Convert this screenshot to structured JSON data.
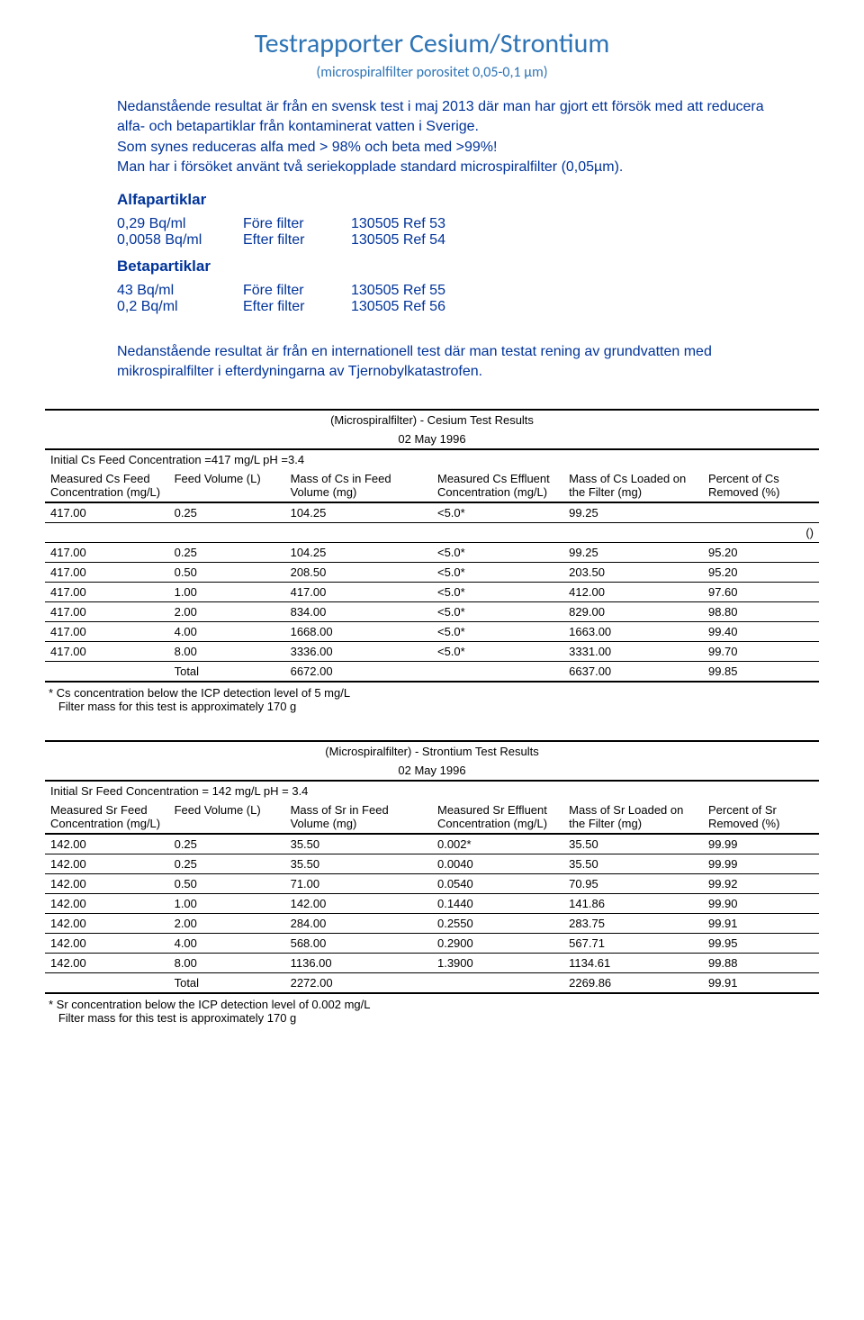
{
  "title": "Testrapporter Cesium/Strontium",
  "subtitle": "(microspiralfilter porositet 0,05-0,1 µm)",
  "intro": "Nedanstående resultat är från en svensk test i maj 2013 där man har gjort ett försök med att reducera alfa- och betapartiklar från kontaminerat vatten i Sverige.\nSom synes reduceras alfa med > 98% och beta med >99%!\nMan har i försöket använt två seriekopplade standard microspiralfilter (0,05µm).",
  "alpha": {
    "heading": "Alfapartiklar",
    "rows": [
      {
        "c1": "0,29 Bq/ml",
        "c2": "Före filter",
        "c3": "130505 Ref 53"
      },
      {
        "c1": "0,0058 Bq/ml",
        "c2": "Efter filter",
        "c3": "130505 Ref 54"
      }
    ]
  },
  "beta": {
    "heading": "Betapartiklar",
    "rows": [
      {
        "c1": "43  Bq/ml",
        "c2": "Före filter",
        "c3": "130505  Ref 55"
      },
      {
        "c1": "0,2 Bq/ml",
        "c2": "Efter filter",
        "c3": "130505  Ref 56"
      }
    ]
  },
  "intro2": "Nedanstående resultat är från en internationell test där man testat rening av grundvatten med mikrospiralfilter i efterdyningarna av Tjernobylkatastrofen.",
  "cesium": {
    "title": "(Microspiralfilter) - Cesium Test Results",
    "date": "02 May 1996",
    "initial": "Initial Cs Feed Concentration =417 mg/L pH =3.4",
    "headers": [
      "Measured Cs Feed Concentration (mg/L)",
      "Feed Volume (L)",
      "Mass of Cs in Feed Volume (mg)",
      "Measured Cs Effluent Concentration (mg/L)",
      "Mass of Cs Loaded on the Filter (mg)",
      "Percent of Cs Removed (%)"
    ],
    "rows": [
      [
        "417.00",
        "0.25",
        "104.25",
        "<5.0*",
        "99.25",
        ""
      ],
      [
        "",
        "",
        "",
        "",
        "",
        "()"
      ],
      [
        "417.00",
        "0.25",
        "104.25",
        "<5.0*",
        "99.25",
        "95.20"
      ],
      [
        "417.00",
        "0.50",
        "208.50",
        "<5.0*",
        "203.50",
        "95.20"
      ],
      [
        "417.00",
        "1.00",
        "417.00",
        "<5.0*",
        "412.00",
        "97.60"
      ],
      [
        "417.00",
        "2.00",
        "834.00",
        "<5.0*",
        "829.00",
        "98.80"
      ],
      [
        "417.00",
        "4.00",
        "1668.00",
        "<5.0*",
        "1663.00",
        "99.40"
      ],
      [
        "417.00",
        "8.00",
        "3336.00",
        "<5.0*",
        "3331.00",
        "99.70"
      ],
      [
        "",
        "Total",
        "6672.00",
        "",
        "6637.00",
        "99.85"
      ]
    ],
    "footnote1": "* Cs concentration below the ICP detection level of 5 mg/L",
    "footnote2": "Filter mass for this test is approximately 170 g"
  },
  "strontium": {
    "title": "(Microspiralfilter) - Strontium Test Results",
    "date": "02 May 1996",
    "initial": "Initial Sr Feed Concentration = 142 mg/L pH = 3.4",
    "headers": [
      "Measured Sr Feed Concentration (mg/L)",
      "Feed Volume (L)",
      "Mass of Sr in Feed Volume (mg)",
      "Measured    Sr Effluent Concentration (mg/L)",
      "Mass of Sr Loaded on the Filter (mg)",
      "Percent of Sr Removed (%)"
    ],
    "rows": [
      [
        "142.00",
        "0.25",
        "35.50",
        "0.002*",
        "35.50",
        "99.99"
      ],
      [
        "142.00",
        "0.25",
        "35.50",
        "0.0040",
        "35.50",
        "99.99"
      ],
      [
        "142.00",
        "0.50",
        "71.00",
        "0.0540",
        "70.95",
        "99.92"
      ],
      [
        "142.00",
        "1.00",
        "142.00",
        "0.1440",
        "141.86",
        "99.90"
      ],
      [
        "142.00",
        "2.00",
        "284.00",
        "0.2550",
        "283.75",
        "99.91"
      ],
      [
        "142.00",
        "4.00",
        "568.00",
        "0.2900",
        "567.71",
        "99.95"
      ],
      [
        "142.00",
        "8.00",
        "1136.00",
        "1.3900",
        "1134.61",
        "99.88"
      ],
      [
        "",
        "Total",
        "2272.00",
        "",
        "2269.86",
        "99.91"
      ]
    ],
    "footnote1": "* Sr concentration below the ICP detection level of 0.002 mg/L",
    "footnote2": "Filter mass for this test is approximately 170 g"
  }
}
